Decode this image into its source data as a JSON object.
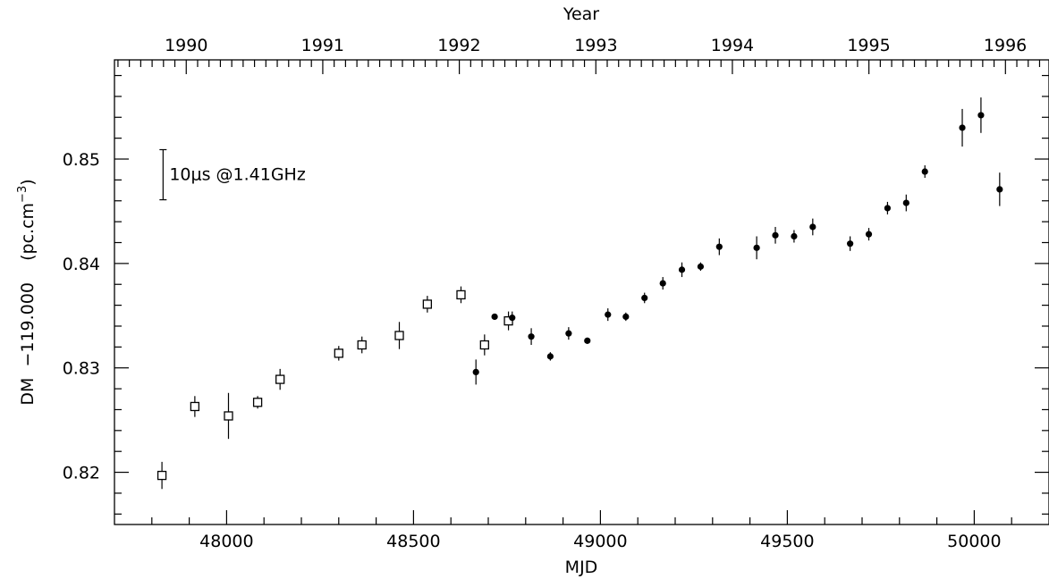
{
  "chart_data": {
    "type": "scatter",
    "xlabel": "MJD",
    "ylabel_main": "DM  −119.000",
    "ylabel_unit": "(pc.cm",
    "ylabel_unit_sup": "−3",
    "ylabel_unit_close": ")",
    "top_axis_label": "Year",
    "xlim": [
      47700,
      50200
    ],
    "ylim": [
      0.815,
      0.8595
    ],
    "x_ticks": [
      48000,
      48500,
      49000,
      49500,
      50000
    ],
    "x_tick_labels": [
      "48000",
      "48500",
      "49000",
      "49500",
      "50000"
    ],
    "y_ticks": [
      0.82,
      0.83,
      0.84,
      0.85
    ],
    "y_tick_labels": [
      "0.82",
      "0.83",
      "0.84",
      "0.85"
    ],
    "year_labels": [
      "1990",
      "1991",
      "1992",
      "1993",
      "1994",
      "1995",
      "1996"
    ],
    "year_mjd": [
      47892,
      48257,
      48622,
      48988,
      49353,
      49718,
      50083
    ],
    "scale_bar": {
      "label": "10μs @1.41GHz",
      "x": 47830,
      "y_low": 0.8461,
      "y_high": 0.8509
    },
    "series": [
      {
        "marker": "open-square",
        "x": [
          47827,
          47915,
          48005,
          48083,
          48143,
          48300,
          48362,
          48462,
          48537,
          48627,
          48690,
          48754
        ],
        "y": [
          0.8197,
          0.8263,
          0.8254,
          0.8267,
          0.8289,
          0.8314,
          0.8322,
          0.8331,
          0.8361,
          0.837,
          0.8322,
          0.8345
        ],
        "err": [
          0.0013,
          0.001,
          0.0022,
          0.0006,
          0.001,
          0.0007,
          0.0008,
          0.0013,
          0.0008,
          0.0008,
          0.001,
          0.0009
        ]
      },
      {
        "marker": "filled-circle",
        "x": [
          48667,
          48717,
          48764,
          48815,
          48866,
          48915,
          48965,
          49020,
          49068,
          49118,
          49167,
          49218,
          49268,
          49318,
          49418,
          49468,
          49518,
          49568,
          49668,
          49718,
          49768,
          49818,
          49868,
          49968,
          50018,
          50068
        ],
        "y": [
          0.8296,
          0.8349,
          0.8348,
          0.833,
          0.8311,
          0.8333,
          0.8326,
          0.8351,
          0.8349,
          0.8367,
          0.8381,
          0.8394,
          0.8397,
          0.8416,
          0.8415,
          0.8427,
          0.8426,
          0.8435,
          0.8419,
          0.8428,
          0.8453,
          0.8458,
          0.8488,
          0.853,
          0.8542,
          0.8471
        ],
        "err": [
          0.0012,
          0.0003,
          0.0006,
          0.0008,
          0.0004,
          0.0006,
          0.0003,
          0.0006,
          0.0004,
          0.0005,
          0.0006,
          0.0007,
          0.0004,
          0.0008,
          0.0011,
          0.0008,
          0.0006,
          0.0008,
          0.0007,
          0.0006,
          0.0006,
          0.0008,
          0.0006,
          0.0018,
          0.0017,
          0.0016
        ]
      }
    ]
  }
}
